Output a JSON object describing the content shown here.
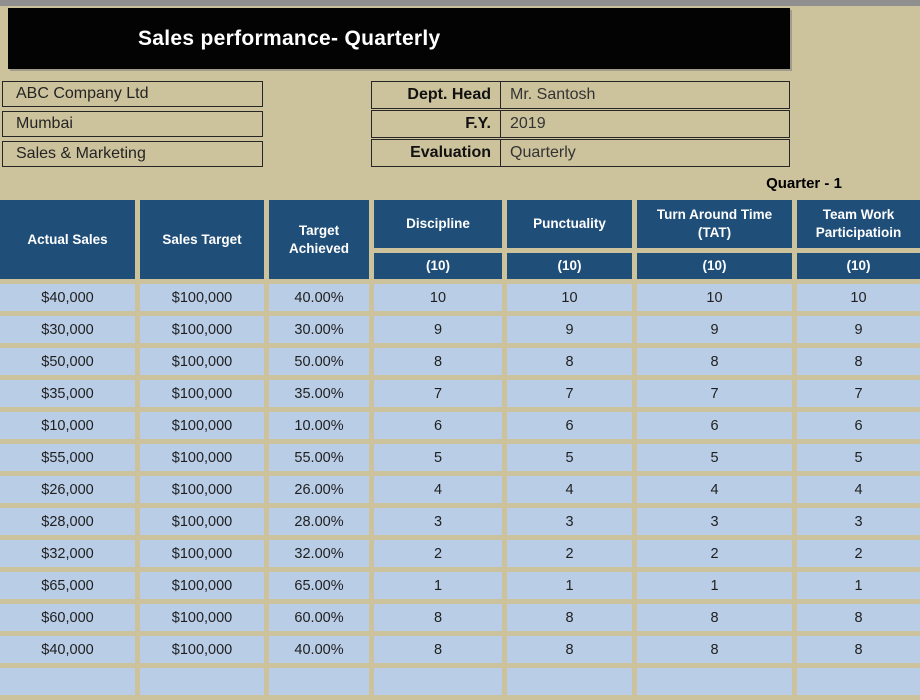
{
  "title": "Sales performance- Quarterly",
  "company_info": {
    "name": "ABC Company Ltd",
    "city": "Mumbai",
    "department": "Sales & Marketing"
  },
  "meta_fields": [
    {
      "label": "Dept. Head",
      "value": "Mr. Santosh"
    },
    {
      "label": "F.Y.",
      "value": "2019"
    },
    {
      "label": "Evaluation",
      "value": "Quarterly"
    }
  ],
  "quarter_label": "Quarter - 1",
  "table": {
    "columns": [
      {
        "label": "Actual Sales"
      },
      {
        "label": "Sales Target"
      },
      {
        "label": "Target Achieved"
      },
      {
        "label": "Discipline",
        "max": "(10)"
      },
      {
        "label": "Punctuality",
        "max": "(10)"
      },
      {
        "label": "Turn Around Time (TAT)",
        "max": "(10)"
      },
      {
        "label": "Team Work Participatioin",
        "max": "(10)"
      }
    ],
    "rows": [
      [
        "$40,000",
        "$100,000",
        "40.00%",
        "10",
        "10",
        "10",
        "10"
      ],
      [
        "$30,000",
        "$100,000",
        "30.00%",
        "9",
        "9",
        "9",
        "9"
      ],
      [
        "$50,000",
        "$100,000",
        "50.00%",
        "8",
        "8",
        "8",
        "8"
      ],
      [
        "$35,000",
        "$100,000",
        "35.00%",
        "7",
        "7",
        "7",
        "7"
      ],
      [
        "$10,000",
        "$100,000",
        "10.00%",
        "6",
        "6",
        "6",
        "6"
      ],
      [
        "$55,000",
        "$100,000",
        "55.00%",
        "5",
        "5",
        "5",
        "5"
      ],
      [
        "$26,000",
        "$100,000",
        "26.00%",
        "4",
        "4",
        "4",
        "4"
      ],
      [
        "$28,000",
        "$100,000",
        "28.00%",
        "3",
        "3",
        "3",
        "3"
      ],
      [
        "$32,000",
        "$100,000",
        "32.00%",
        "2",
        "2",
        "2",
        "2"
      ],
      [
        "$65,000",
        "$100,000",
        "65.00%",
        "1",
        "1",
        "1",
        "1"
      ],
      [
        "$60,000",
        "$100,000",
        "60.00%",
        "8",
        "8",
        "8",
        "8"
      ],
      [
        "$40,000",
        "$100,000",
        "40.00%",
        "8",
        "8",
        "8",
        "8"
      ]
    ],
    "empty_rows": 2
  },
  "colors": {
    "page_background": "#ccc29c",
    "banner_background": "#030303",
    "banner_text": "#ffffff",
    "header_background": "#1f4e79",
    "header_text": "#ffffff",
    "row_background": "#b9cde6",
    "row_text": "#1f1f1f",
    "top_strip": "#8f8f8f"
  }
}
